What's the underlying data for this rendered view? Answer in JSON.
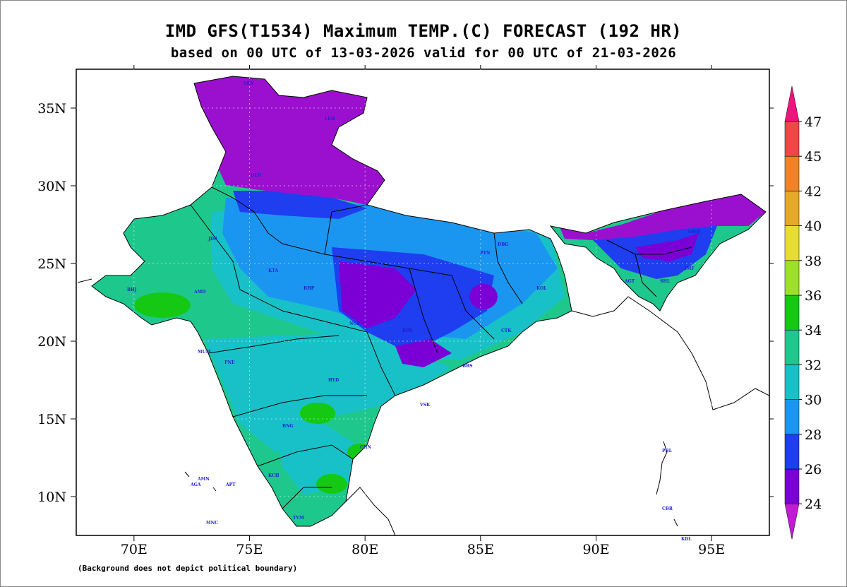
{
  "title": {
    "line1": "IMD GFS(T1534) Maximum TEMP.(C) FORECAST (192 HR)",
    "line2": "based on 00 UTC of 13-03-2026 valid for 00 UTC of 21-03-2026"
  },
  "map": {
    "lat_labels": [
      "35N",
      "30N",
      "25N",
      "20N",
      "15N",
      "10N"
    ],
    "lon_labels": [
      "70E",
      "75E",
      "80E",
      "85E",
      "90E",
      "95E"
    ],
    "lat_values": [
      35,
      30,
      25,
      20,
      15,
      10
    ],
    "lon_values": [
      70,
      75,
      80,
      85,
      90,
      95
    ],
    "extent": {
      "lon_min": 67.5,
      "lon_max": 97.5,
      "lat_min": 7.5,
      "lat_max": 37.5
    },
    "footnote": "(Background does not depict political boundary)",
    "station_labels": [
      "SRN",
      "DLH",
      "JDR",
      "KTA",
      "BHP",
      "NGP",
      "RPR",
      "PTN",
      "KOL",
      "GWH",
      "IMF",
      "AMD",
      "BHJ",
      "MUM",
      "PNE",
      "HYD",
      "BNG",
      "CHN",
      "TVM",
      "KCH",
      "BBS",
      "VSK",
      "CTK",
      "DBG",
      "AGT",
      "SHL",
      "LEH",
      "AMN",
      "AGA",
      "APT",
      "MNC",
      "PBL",
      "CBR",
      "KDL"
    ],
    "colors": {
      "below_24": "#c01cd4",
      "24_26": "#7a00d6",
      "26_28": "#1e3ef0",
      "28_30": "#1a96f0",
      "30_32": "#18c1c8",
      "32_34": "#1ec88c",
      "34_36": "#14c814",
      "36_38": "#9ce02a",
      "38_40": "#e6dc32",
      "40_42": "#e6a828",
      "42_45": "#f08228",
      "45_47": "#f04646",
      "above_47": "#f0147d"
    }
  },
  "colorbar": {
    "ticks": [
      "24",
      "26",
      "28",
      "30",
      "32",
      "34",
      "36",
      "38",
      "40",
      "42",
      "45",
      "47"
    ]
  }
}
